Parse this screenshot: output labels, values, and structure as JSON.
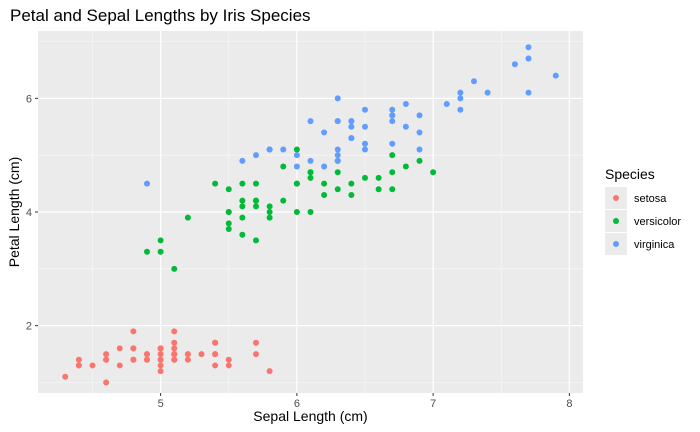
{
  "chart_data": {
    "type": "scatter",
    "title": "Petal and Sepal Lengths by Iris Species",
    "xlabel": "Sepal Length (cm)",
    "ylabel": "Petal Length (cm)",
    "xlim": [
      4.1,
      8.1
    ],
    "ylim": [
      0.815,
      7.185
    ],
    "x_ticks": [
      5,
      6,
      7,
      8
    ],
    "y_ticks": [
      2,
      4,
      6
    ],
    "x_tick_labels": [
      "5",
      "6",
      "7",
      "8"
    ],
    "y_tick_labels": [
      "2",
      "4",
      "6"
    ],
    "grid": true,
    "legend": {
      "title": "Species",
      "position": "right"
    },
    "series": [
      {
        "name": "setosa",
        "color": "#F8766D",
        "points": [
          [
            5.1,
            1.4
          ],
          [
            4.9,
            1.4
          ],
          [
            4.7,
            1.3
          ],
          [
            4.6,
            1.5
          ],
          [
            5.0,
            1.4
          ],
          [
            5.4,
            1.7
          ],
          [
            4.6,
            1.4
          ],
          [
            5.0,
            1.5
          ],
          [
            4.4,
            1.4
          ],
          [
            4.9,
            1.5
          ],
          [
            5.4,
            1.5
          ],
          [
            4.8,
            1.6
          ],
          [
            4.8,
            1.4
          ],
          [
            4.3,
            1.1
          ],
          [
            5.8,
            1.2
          ],
          [
            5.7,
            1.5
          ],
          [
            5.4,
            1.3
          ],
          [
            5.1,
            1.4
          ],
          [
            5.7,
            1.7
          ],
          [
            5.1,
            1.5
          ],
          [
            5.4,
            1.7
          ],
          [
            5.1,
            1.5
          ],
          [
            4.6,
            1.0
          ],
          [
            5.1,
            1.7
          ],
          [
            4.8,
            1.9
          ],
          [
            5.0,
            1.6
          ],
          [
            5.0,
            1.6
          ],
          [
            5.2,
            1.5
          ],
          [
            5.2,
            1.4
          ],
          [
            4.7,
            1.6
          ],
          [
            4.8,
            1.6
          ],
          [
            5.4,
            1.5
          ],
          [
            5.2,
            1.5
          ],
          [
            5.5,
            1.4
          ],
          [
            4.9,
            1.5
          ],
          [
            5.0,
            1.2
          ],
          [
            5.5,
            1.3
          ],
          [
            4.9,
            1.4
          ],
          [
            4.4,
            1.3
          ],
          [
            5.1,
            1.5
          ],
          [
            5.0,
            1.3
          ],
          [
            4.5,
            1.3
          ],
          [
            4.4,
            1.3
          ],
          [
            5.0,
            1.6
          ],
          [
            5.1,
            1.9
          ],
          [
            4.8,
            1.4
          ],
          [
            5.1,
            1.6
          ],
          [
            4.6,
            1.4
          ],
          [
            5.3,
            1.5
          ],
          [
            5.0,
            1.4
          ]
        ]
      },
      {
        "name": "versicolor",
        "color": "#00BA38",
        "points": [
          [
            7.0,
            4.7
          ],
          [
            6.4,
            4.5
          ],
          [
            6.9,
            4.9
          ],
          [
            5.5,
            4.0
          ],
          [
            6.5,
            4.6
          ],
          [
            5.7,
            4.5
          ],
          [
            6.3,
            4.7
          ],
          [
            4.9,
            3.3
          ],
          [
            6.6,
            4.6
          ],
          [
            5.2,
            3.9
          ],
          [
            5.0,
            3.5
          ],
          [
            5.9,
            4.2
          ],
          [
            6.0,
            4.0
          ],
          [
            6.1,
            4.7
          ],
          [
            5.6,
            3.6
          ],
          [
            6.7,
            4.4
          ],
          [
            5.6,
            4.5
          ],
          [
            5.8,
            4.1
          ],
          [
            6.2,
            4.5
          ],
          [
            5.6,
            3.9
          ],
          [
            5.9,
            4.8
          ],
          [
            6.1,
            4.0
          ],
          [
            6.3,
            4.9
          ],
          [
            6.1,
            4.7
          ],
          [
            6.4,
            4.3
          ],
          [
            6.6,
            4.4
          ],
          [
            6.8,
            4.8
          ],
          [
            6.7,
            5.0
          ],
          [
            6.0,
            4.5
          ],
          [
            5.7,
            3.5
          ],
          [
            5.5,
            3.8
          ],
          [
            5.5,
            3.7
          ],
          [
            5.8,
            3.9
          ],
          [
            6.0,
            5.1
          ],
          [
            5.4,
            4.5
          ],
          [
            6.0,
            4.5
          ],
          [
            6.7,
            4.7
          ],
          [
            6.3,
            4.4
          ],
          [
            5.6,
            4.1
          ],
          [
            5.5,
            4.0
          ],
          [
            5.5,
            4.4
          ],
          [
            6.1,
            4.6
          ],
          [
            5.8,
            4.0
          ],
          [
            5.0,
            3.3
          ],
          [
            5.6,
            4.2
          ],
          [
            5.7,
            4.2
          ],
          [
            5.7,
            4.2
          ],
          [
            6.2,
            4.3
          ],
          [
            5.1,
            3.0
          ],
          [
            5.7,
            4.1
          ]
        ]
      },
      {
        "name": "virginica",
        "color": "#619CFF",
        "points": [
          [
            6.3,
            6.0
          ],
          [
            5.8,
            5.1
          ],
          [
            7.1,
            5.9
          ],
          [
            6.3,
            5.6
          ],
          [
            6.5,
            5.8
          ],
          [
            7.6,
            6.6
          ],
          [
            4.9,
            4.5
          ],
          [
            7.3,
            6.3
          ],
          [
            6.7,
            5.8
          ],
          [
            7.2,
            6.1
          ],
          [
            6.5,
            5.1
          ],
          [
            6.4,
            5.3
          ],
          [
            6.8,
            5.5
          ],
          [
            5.7,
            5.0
          ],
          [
            5.8,
            5.1
          ],
          [
            6.4,
            5.3
          ],
          [
            6.5,
            5.5
          ],
          [
            7.7,
            6.7
          ],
          [
            7.7,
            6.9
          ],
          [
            6.0,
            5.0
          ],
          [
            6.9,
            5.7
          ],
          [
            5.6,
            4.9
          ],
          [
            7.7,
            6.7
          ],
          [
            6.3,
            4.9
          ],
          [
            6.7,
            5.7
          ],
          [
            7.2,
            6.0
          ],
          [
            6.2,
            4.8
          ],
          [
            6.1,
            4.9
          ],
          [
            6.4,
            5.6
          ],
          [
            7.2,
            5.8
          ],
          [
            7.4,
            6.1
          ],
          [
            7.9,
            6.4
          ],
          [
            6.4,
            5.6
          ],
          [
            6.3,
            5.1
          ],
          [
            6.1,
            5.6
          ],
          [
            7.7,
            6.1
          ],
          [
            6.3,
            5.6
          ],
          [
            6.4,
            5.5
          ],
          [
            6.0,
            4.8
          ],
          [
            6.9,
            5.4
          ],
          [
            6.7,
            5.6
          ],
          [
            6.9,
            5.1
          ],
          [
            5.8,
            5.1
          ],
          [
            6.8,
            5.9
          ],
          [
            6.7,
            5.7
          ],
          [
            6.7,
            5.2
          ],
          [
            6.3,
            5.0
          ],
          [
            6.5,
            5.2
          ],
          [
            6.2,
            5.4
          ],
          [
            5.9,
            5.1
          ]
        ]
      }
    ]
  }
}
